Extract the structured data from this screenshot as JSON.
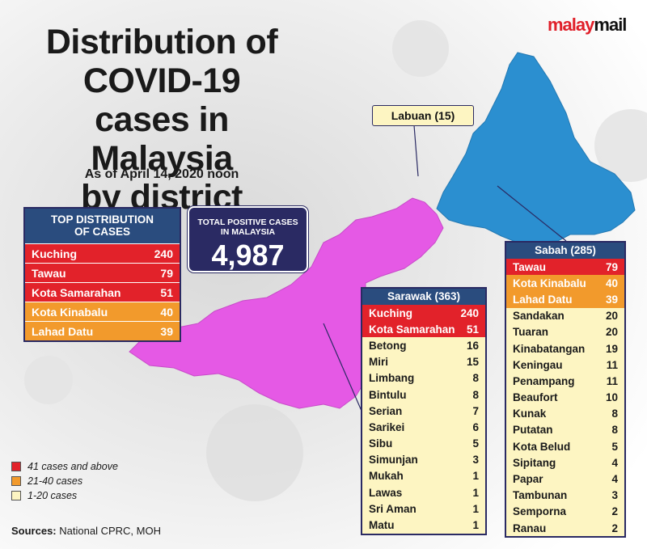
{
  "header": {
    "title_lines": [
      "Distribution of",
      "COVID-19",
      "cases in Malaysia",
      "by district"
    ],
    "subtitle": "As of April 14, 2020 noon",
    "logo_part1": "malay",
    "logo_part2": "mail"
  },
  "total": {
    "label_line1": "TOTAL POSITIVE CASES",
    "label_line2": "IN MALAYSIA",
    "value": "4,987"
  },
  "top_distribution": {
    "header_line1": "TOP DISTRIBUTION",
    "header_line2": "OF CASES",
    "rows": [
      {
        "name": "Kuching",
        "value": "240",
        "tier": "red"
      },
      {
        "name": "Tawau",
        "value": "79",
        "tier": "red"
      },
      {
        "name": "Kota Samarahan",
        "value": "51",
        "tier": "red"
      },
      {
        "name": "Kota Kinabalu",
        "value": "40",
        "tier": "orange"
      },
      {
        "name": "Lahad Datu",
        "value": "39",
        "tier": "orange"
      }
    ]
  },
  "labuan": {
    "label": "Labuan (15)"
  },
  "colors": {
    "red": "#e2222a",
    "orange": "#f29a2c",
    "yellow": "#fdf5c2",
    "navy": "#2a2a63",
    "header_blue": "#2a4c7e",
    "sarawak_map": "#e559e5",
    "sabah_map": "#2b8fd0"
  },
  "legend": [
    {
      "label": "41 cases and above",
      "tier": "red"
    },
    {
      "label": "21-40 cases",
      "tier": "orange"
    },
    {
      "label": "1-20 cases",
      "tier": "yellow"
    }
  ],
  "sources": {
    "label": "Sources:",
    "text": "National CPRC, MOH"
  },
  "chart_data": {
    "type": "table",
    "tables": [
      {
        "title": "Sarawak (363)",
        "rows": [
          {
            "name": "Kuching",
            "value": 240,
            "tier": "red"
          },
          {
            "name": "Kota Samarahan",
            "value": 51,
            "tier": "red"
          },
          {
            "name": "Betong",
            "value": 16,
            "tier": "yellow"
          },
          {
            "name": "Miri",
            "value": 15,
            "tier": "yellow"
          },
          {
            "name": "Limbang",
            "value": 8,
            "tier": "yellow"
          },
          {
            "name": "Bintulu",
            "value": 8,
            "tier": "yellow"
          },
          {
            "name": "Serian",
            "value": 7,
            "tier": "yellow"
          },
          {
            "name": "Sarikei",
            "value": 6,
            "tier": "yellow"
          },
          {
            "name": "Sibu",
            "value": 5,
            "tier": "yellow"
          },
          {
            "name": "Simunjan",
            "value": 3,
            "tier": "yellow"
          },
          {
            "name": "Mukah",
            "value": 1,
            "tier": "yellow"
          },
          {
            "name": "Lawas",
            "value": 1,
            "tier": "yellow"
          },
          {
            "name": "Sri  Aman",
            "value": 1,
            "tier": "yellow"
          },
          {
            "name": "Matu",
            "value": 1,
            "tier": "yellow"
          }
        ]
      },
      {
        "title": "Sabah (285)",
        "rows": [
          {
            "name": "Tawau",
            "value": 79,
            "tier": "red"
          },
          {
            "name": "Kota Kinabalu",
            "value": 40,
            "tier": "orange"
          },
          {
            "name": "Lahad Datu",
            "value": 39,
            "tier": "orange"
          },
          {
            "name": "Sandakan",
            "value": 20,
            "tier": "yellow"
          },
          {
            "name": "Tuaran",
            "value": 20,
            "tier": "yellow"
          },
          {
            "name": "Kinabatangan",
            "value": 19,
            "tier": "yellow"
          },
          {
            "name": "Keningau",
            "value": 11,
            "tier": "yellow"
          },
          {
            "name": "Penampang",
            "value": 11,
            "tier": "yellow"
          },
          {
            "name": "Beaufort",
            "value": 10,
            "tier": "yellow"
          },
          {
            "name": "Kunak",
            "value": 8,
            "tier": "yellow"
          },
          {
            "name": "Putatan",
            "value": 8,
            "tier": "yellow"
          },
          {
            "name": "Kota Belud",
            "value": 5,
            "tier": "yellow"
          },
          {
            "name": "Sipitang",
            "value": 4,
            "tier": "yellow"
          },
          {
            "name": "Papar",
            "value": 4,
            "tier": "yellow"
          },
          {
            "name": "Tambunan",
            "value": 3,
            "tier": "yellow"
          },
          {
            "name": "Semporna",
            "value": 2,
            "tier": "yellow"
          },
          {
            "name": "Ranau",
            "value": 2,
            "tier": "yellow"
          }
        ]
      }
    ]
  }
}
